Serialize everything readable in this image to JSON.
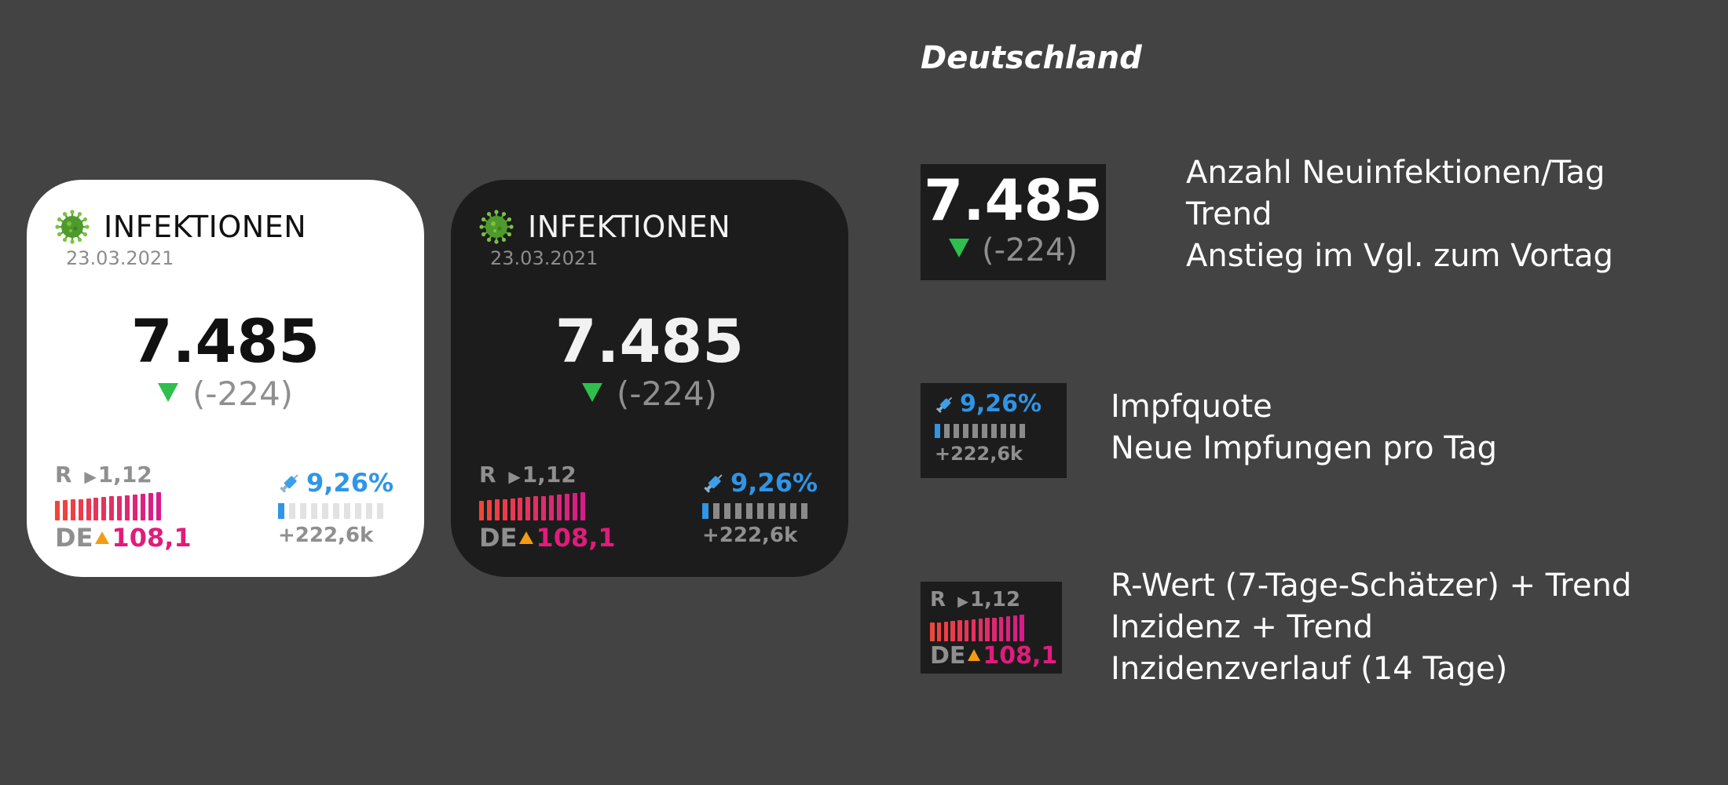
{
  "widgets": [
    {
      "title": "INFEKTIONEN",
      "date": "23.03.2021",
      "value": "7.485",
      "delta": "(-224)",
      "r_label": "R",
      "r_value": "1,12",
      "de_label": "DE",
      "incidence": "108,1",
      "vacc_rate": "9,26%",
      "vacc_new": "+222,6k"
    },
    {
      "title": "INFEKTIONEN",
      "date": "23.03.2021",
      "value": "7.485",
      "delta": "(-224)",
      "r_label": "R",
      "r_value": "1,12",
      "de_label": "DE",
      "incidence": "108,1",
      "vacc_rate": "9,26%",
      "vacc_new": "+222,6k"
    }
  ],
  "legend": {
    "title": "Deutschland",
    "infections": {
      "value": "7.485",
      "delta": "(-224)",
      "lines": [
        "Anzahl Neuinfektionen/Tag",
        "Trend",
        "Anstieg im Vgl. zum Vortag"
      ]
    },
    "vaccination": {
      "rate": "9,26%",
      "new": "+222,6k",
      "lines": [
        "Impfquote",
        "Neue Impfungen pro Tag"
      ]
    },
    "rvalue": {
      "r_label": "R",
      "r_value": "1,12",
      "de_label": "DE",
      "incidence": "108,1",
      "lines": [
        "R-Wert (7-Tage-Schätzer) + Trend",
        "Inzidenz + Trend",
        "Inzidenzverlauf (14 Tage)"
      ]
    }
  },
  "icons": {
    "virus": "virus-icon",
    "syringe": "syringe-icon",
    "trend_down": "triangle-down-icon",
    "trend_up": "triangle-up-icon",
    "trend_flat": "triangle-right-icon"
  },
  "colors": {
    "background": "#434343",
    "light_widget": "#ffffff",
    "dark_widget": "#1c1c1c",
    "trend_down": "#2fbf4c",
    "trend_up": "#f39c12",
    "incidence": "#e01c7b",
    "vaccination": "#2f95e6",
    "incidence_bar_start": "#f0463a",
    "incidence_bar_end": "#d81b8a"
  },
  "vaccination_progress": 0.0926,
  "incidence_history": [
    0.7,
    0.72,
    0.74,
    0.76,
    0.78,
    0.8,
    0.82,
    0.85,
    0.87,
    0.89,
    0.92,
    0.94,
    0.97,
    1.0
  ]
}
